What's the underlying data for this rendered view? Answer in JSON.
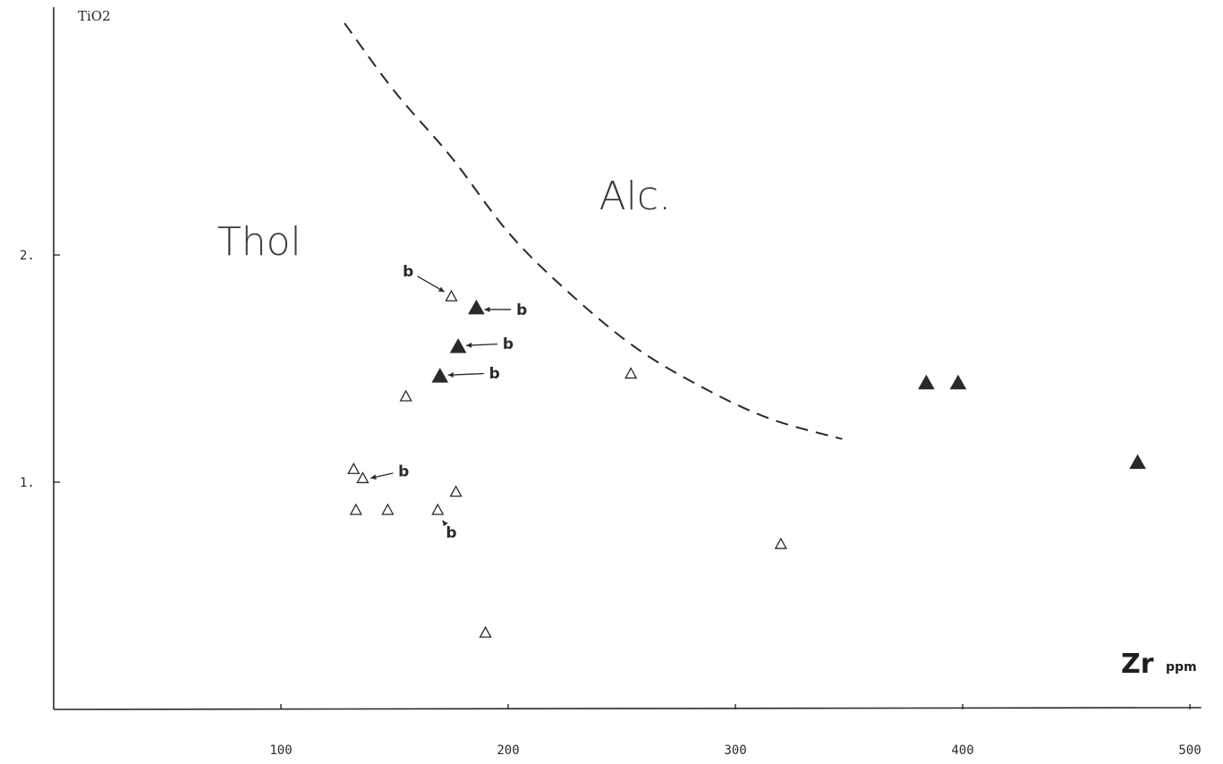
{
  "chart_data": {
    "type": "scatter",
    "ylabel": "TiO2",
    "xlabel": "Zr",
    "xlabel_unit": "ppm",
    "xlim": [
      0,
      505
    ],
    "ylim": [
      0,
      3.0
    ],
    "x_ticks": [
      100,
      200,
      300,
      400,
      500
    ],
    "y_ticks": [
      1,
      2
    ],
    "y_tick_labels": [
      "1.",
      "2."
    ],
    "x_tick_labels": [
      "100",
      "200",
      "300",
      "400",
      "500"
    ],
    "grid": false,
    "regions": [
      {
        "label": "Thol",
        "at": [
          72,
          2.0
        ]
      },
      {
        "label": "Alc.",
        "at": [
          240,
          2.2
        ]
      }
    ],
    "boundary": {
      "style": "dashed",
      "x": [
        128,
        150,
        175,
        200,
        225,
        255,
        285,
        315,
        347
      ],
      "y": [
        3.02,
        2.72,
        2.43,
        2.1,
        1.85,
        1.6,
        1.42,
        1.28,
        1.19
      ]
    },
    "series": [
      {
        "marker": "open-triangle",
        "x": [
          175,
          155,
          132,
          136,
          177,
          133,
          147,
          169,
          190,
          254,
          320
        ],
        "y": [
          1.82,
          1.38,
          1.06,
          1.02,
          0.96,
          0.88,
          0.88,
          0.88,
          0.34,
          1.48,
          0.73
        ]
      },
      {
        "marker": "filled-triangle",
        "x": [
          186,
          178,
          170,
          384,
          398,
          477
        ],
        "y": [
          1.77,
          1.6,
          1.47,
          1.44,
          1.44,
          1.09
        ]
      }
    ],
    "annotations": [
      {
        "text": "b",
        "target": [
          175,
          1.82
        ],
        "label_at": [
          156,
          1.93
        ]
      },
      {
        "text": "b",
        "target": [
          186,
          1.76
        ],
        "label_at": [
          206,
          1.76
        ]
      },
      {
        "text": "b",
        "target": [
          178,
          1.6
        ],
        "label_at": [
          200,
          1.61
        ]
      },
      {
        "text": "b",
        "target": [
          170,
          1.47
        ],
        "label_at": [
          194,
          1.48
        ]
      },
      {
        "text": "b",
        "target": [
          136,
          1.01
        ],
        "label_at": [
          154,
          1.05
        ]
      },
      {
        "text": "b",
        "target": [
          169,
          0.86
        ],
        "label_at": [
          175,
          0.78
        ]
      }
    ]
  }
}
